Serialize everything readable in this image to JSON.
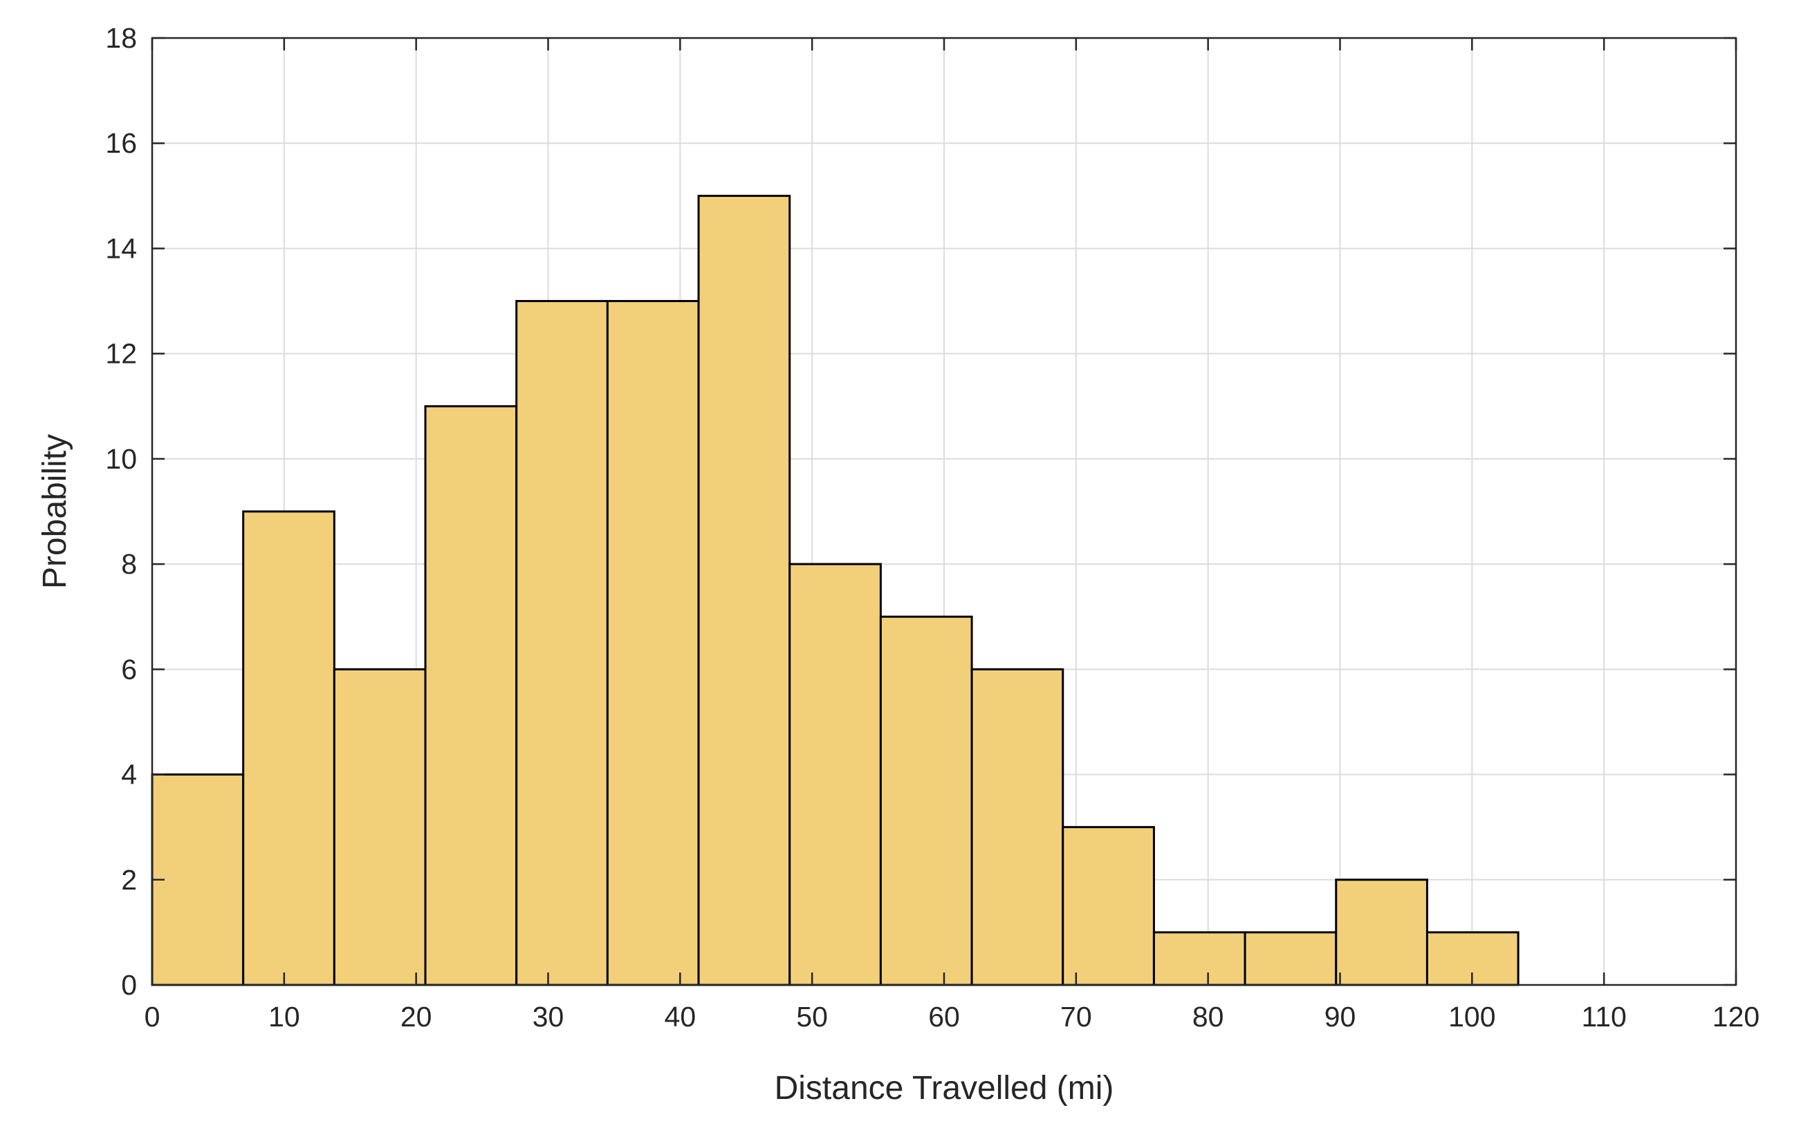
{
  "chart_data": {
    "type": "histogram",
    "title": "",
    "xlabel": "Distance Travelled (mi)",
    "ylabel": "Probability",
    "xlim": [
      0,
      120
    ],
    "ylim": [
      0,
      18
    ],
    "xticks": [
      0,
      10,
      20,
      30,
      40,
      50,
      60,
      70,
      80,
      90,
      100,
      110,
      120
    ],
    "yticks": [
      0,
      2,
      4,
      6,
      8,
      10,
      12,
      14,
      16,
      18
    ],
    "grid": true,
    "bar_color": "#F2D07A",
    "edge_color": "#000000",
    "bins": [
      {
        "x0": 0.0,
        "x1": 6.9,
        "value": 4
      },
      {
        "x0": 6.9,
        "x1": 13.8,
        "value": 9
      },
      {
        "x0": 13.8,
        "x1": 20.7,
        "value": 6
      },
      {
        "x0": 20.7,
        "x1": 27.6,
        "value": 11
      },
      {
        "x0": 27.6,
        "x1": 34.5,
        "value": 13
      },
      {
        "x0": 34.5,
        "x1": 41.4,
        "value": 13
      },
      {
        "x0": 41.4,
        "x1": 48.3,
        "value": 15
      },
      {
        "x0": 48.3,
        "x1": 55.2,
        "value": 8
      },
      {
        "x0": 55.2,
        "x1": 62.1,
        "value": 7
      },
      {
        "x0": 62.1,
        "x1": 69.0,
        "value": 6
      },
      {
        "x0": 69.0,
        "x1": 75.9,
        "value": 3
      },
      {
        "x0": 75.9,
        "x1": 82.8,
        "value": 1
      },
      {
        "x0": 82.8,
        "x1": 89.7,
        "value": 1
      },
      {
        "x0": 89.7,
        "x1": 96.6,
        "value": 2
      },
      {
        "x0": 96.6,
        "x1": 103.5,
        "value": 1
      }
    ]
  }
}
